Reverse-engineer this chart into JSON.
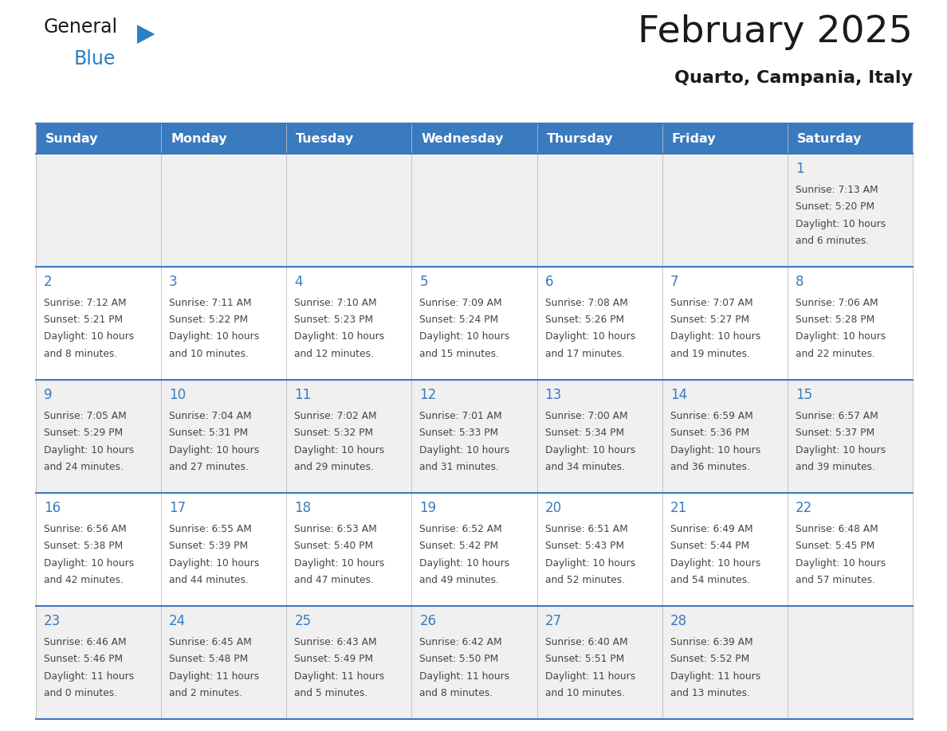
{
  "title": "February 2025",
  "subtitle": "Quarto, Campania, Italy",
  "days_of_week": [
    "Sunday",
    "Monday",
    "Tuesday",
    "Wednesday",
    "Thursday",
    "Friday",
    "Saturday"
  ],
  "header_bg": "#3a7abf",
  "header_text": "#ffffff",
  "row_bg_light": "#f0f0f0",
  "row_bg_white": "#ffffff",
  "separator_color": "#3a7abf",
  "day_number_color": "#3a7abf",
  "text_color": "#444444",
  "logo_black": "#1a1a1a",
  "logo_blue": "#2980c4",
  "calendar": [
    [
      null,
      null,
      null,
      null,
      null,
      null,
      {
        "day": 1,
        "sunrise": "7:13 AM",
        "sunset": "5:20 PM",
        "daylight": "10 hours and 6 minutes."
      }
    ],
    [
      {
        "day": 2,
        "sunrise": "7:12 AM",
        "sunset": "5:21 PM",
        "daylight": "10 hours and 8 minutes."
      },
      {
        "day": 3,
        "sunrise": "7:11 AM",
        "sunset": "5:22 PM",
        "daylight": "10 hours and 10 minutes."
      },
      {
        "day": 4,
        "sunrise": "7:10 AM",
        "sunset": "5:23 PM",
        "daylight": "10 hours and 12 minutes."
      },
      {
        "day": 5,
        "sunrise": "7:09 AM",
        "sunset": "5:24 PM",
        "daylight": "10 hours and 15 minutes."
      },
      {
        "day": 6,
        "sunrise": "7:08 AM",
        "sunset": "5:26 PM",
        "daylight": "10 hours and 17 minutes."
      },
      {
        "day": 7,
        "sunrise": "7:07 AM",
        "sunset": "5:27 PM",
        "daylight": "10 hours and 19 minutes."
      },
      {
        "day": 8,
        "sunrise": "7:06 AM",
        "sunset": "5:28 PM",
        "daylight": "10 hours and 22 minutes."
      }
    ],
    [
      {
        "day": 9,
        "sunrise": "7:05 AM",
        "sunset": "5:29 PM",
        "daylight": "10 hours and 24 minutes."
      },
      {
        "day": 10,
        "sunrise": "7:04 AM",
        "sunset": "5:31 PM",
        "daylight": "10 hours and 27 minutes."
      },
      {
        "day": 11,
        "sunrise": "7:02 AM",
        "sunset": "5:32 PM",
        "daylight": "10 hours and 29 minutes."
      },
      {
        "day": 12,
        "sunrise": "7:01 AM",
        "sunset": "5:33 PM",
        "daylight": "10 hours and 31 minutes."
      },
      {
        "day": 13,
        "sunrise": "7:00 AM",
        "sunset": "5:34 PM",
        "daylight": "10 hours and 34 minutes."
      },
      {
        "day": 14,
        "sunrise": "6:59 AM",
        "sunset": "5:36 PM",
        "daylight": "10 hours and 36 minutes."
      },
      {
        "day": 15,
        "sunrise": "6:57 AM",
        "sunset": "5:37 PM",
        "daylight": "10 hours and 39 minutes."
      }
    ],
    [
      {
        "day": 16,
        "sunrise": "6:56 AM",
        "sunset": "5:38 PM",
        "daylight": "10 hours and 42 minutes."
      },
      {
        "day": 17,
        "sunrise": "6:55 AM",
        "sunset": "5:39 PM",
        "daylight": "10 hours and 44 minutes."
      },
      {
        "day": 18,
        "sunrise": "6:53 AM",
        "sunset": "5:40 PM",
        "daylight": "10 hours and 47 minutes."
      },
      {
        "day": 19,
        "sunrise": "6:52 AM",
        "sunset": "5:42 PM",
        "daylight": "10 hours and 49 minutes."
      },
      {
        "day": 20,
        "sunrise": "6:51 AM",
        "sunset": "5:43 PM",
        "daylight": "10 hours and 52 minutes."
      },
      {
        "day": 21,
        "sunrise": "6:49 AM",
        "sunset": "5:44 PM",
        "daylight": "10 hours and 54 minutes."
      },
      {
        "day": 22,
        "sunrise": "6:48 AM",
        "sunset": "5:45 PM",
        "daylight": "10 hours and 57 minutes."
      }
    ],
    [
      {
        "day": 23,
        "sunrise": "6:46 AM",
        "sunset": "5:46 PM",
        "daylight": "11 hours and 0 minutes."
      },
      {
        "day": 24,
        "sunrise": "6:45 AM",
        "sunset": "5:48 PM",
        "daylight": "11 hours and 2 minutes."
      },
      {
        "day": 25,
        "sunrise": "6:43 AM",
        "sunset": "5:49 PM",
        "daylight": "11 hours and 5 minutes."
      },
      {
        "day": 26,
        "sunrise": "6:42 AM",
        "sunset": "5:50 PM",
        "daylight": "11 hours and 8 minutes."
      },
      {
        "day": 27,
        "sunrise": "6:40 AM",
        "sunset": "5:51 PM",
        "daylight": "11 hours and 10 minutes."
      },
      {
        "day": 28,
        "sunrise": "6:39 AM",
        "sunset": "5:52 PM",
        "daylight": "11 hours and 13 minutes."
      },
      null
    ]
  ]
}
